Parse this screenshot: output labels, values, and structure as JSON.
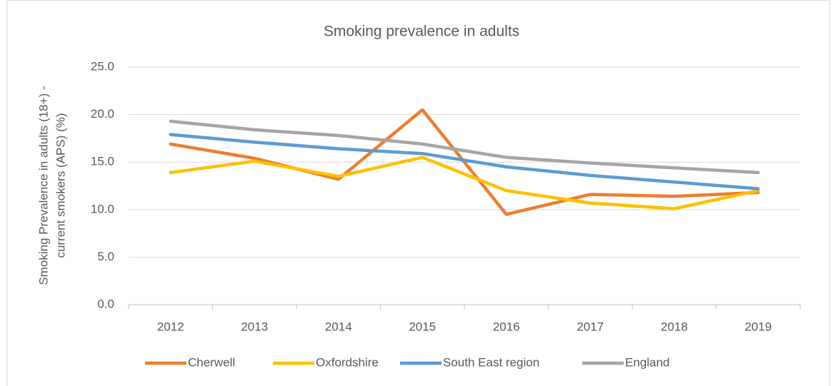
{
  "chart_data": {
    "type": "line",
    "title": "Smoking prevalence in adults",
    "y_label": [
      "Smoking Prevalence in adults (18+) -",
      "current smokers (APS) (%)"
    ],
    "categories": [
      "2012",
      "2013",
      "2014",
      "2015",
      "2016",
      "2017",
      "2018",
      "2019"
    ],
    "series": [
      {
        "name": "Cherwell",
        "color": "#ed7d31",
        "values": [
          16.9,
          15.4,
          13.2,
          20.5,
          9.5,
          11.6,
          11.4,
          11.8
        ]
      },
      {
        "name": "Oxfordshire",
        "color": "#ffc000",
        "values": [
          13.9,
          15.1,
          13.5,
          15.5,
          12.0,
          10.7,
          10.1,
          12.0
        ]
      },
      {
        "name": "South East region",
        "color": "#5b9bd5",
        "values": [
          17.9,
          17.1,
          16.4,
          15.9,
          14.5,
          13.6,
          12.9,
          12.2
        ]
      },
      {
        "name": "England",
        "color": "#a5a5a5",
        "values": [
          19.3,
          18.4,
          17.8,
          16.9,
          15.5,
          14.9,
          14.4,
          13.9
        ]
      }
    ],
    "ylim": [
      0,
      25
    ],
    "yticks": [
      {
        "value": 0,
        "label": "0.0"
      },
      {
        "value": 5,
        "label": "5.0"
      },
      {
        "value": 10,
        "label": "10.0"
      },
      {
        "value": 15,
        "label": "15.0"
      },
      {
        "value": 20,
        "label": "20.0"
      },
      {
        "value": 25,
        "label": "25.0"
      }
    ],
    "grid": true,
    "legend": "bottom"
  }
}
